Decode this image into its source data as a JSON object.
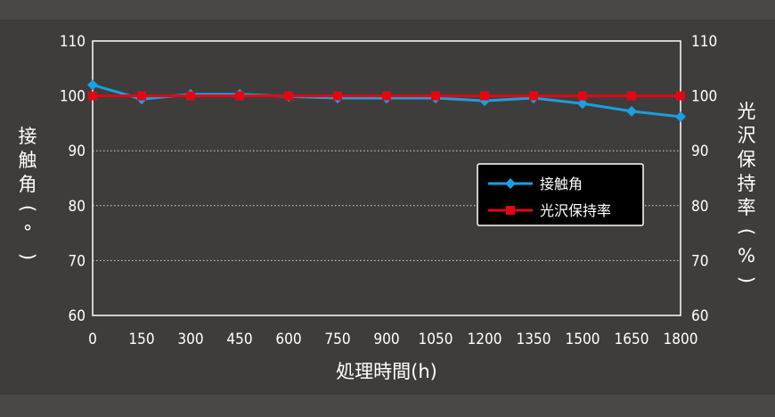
{
  "chart_data": {
    "type": "line",
    "x": [
      0,
      150,
      300,
      450,
      600,
      750,
      900,
      1050,
      1200,
      1350,
      1500,
      1650,
      1800
    ],
    "x_ticks": [
      "0",
      "150",
      "300",
      "450",
      "600",
      "750",
      "900",
      "1050",
      "1200",
      "1350",
      "1500",
      "1650",
      "1800"
    ],
    "y_ticks_left": [
      "110",
      "100",
      "90",
      "80",
      "70",
      "60"
    ],
    "y_ticks_right": [
      "110",
      "100",
      "90",
      "80",
      "70",
      "60"
    ],
    "ylim": [
      60,
      110
    ],
    "xlim": [
      0,
      1800
    ],
    "xlabel": "処理時間(h)",
    "ylabel_left": "接触角(°)",
    "ylabel_right": "光沢保持率(%)",
    "grid": "horizontal dotted",
    "legend_position": "center-right",
    "series": [
      {
        "name": "接触角",
        "axis": "left",
        "color": "#1a9fe0",
        "marker": "diamond",
        "values": [
          102,
          99.4,
          100.3,
          100.3,
          99.9,
          99.6,
          99.6,
          99.6,
          99.1,
          99.6,
          98.6,
          97.2,
          96.2
        ]
      },
      {
        "name": "光沢保持率",
        "axis": "right",
        "color": "#e30613",
        "marker": "square",
        "values": [
          100,
          100,
          100,
          100,
          100,
          100,
          100,
          100,
          100,
          100,
          100,
          100,
          100
        ]
      }
    ]
  }
}
